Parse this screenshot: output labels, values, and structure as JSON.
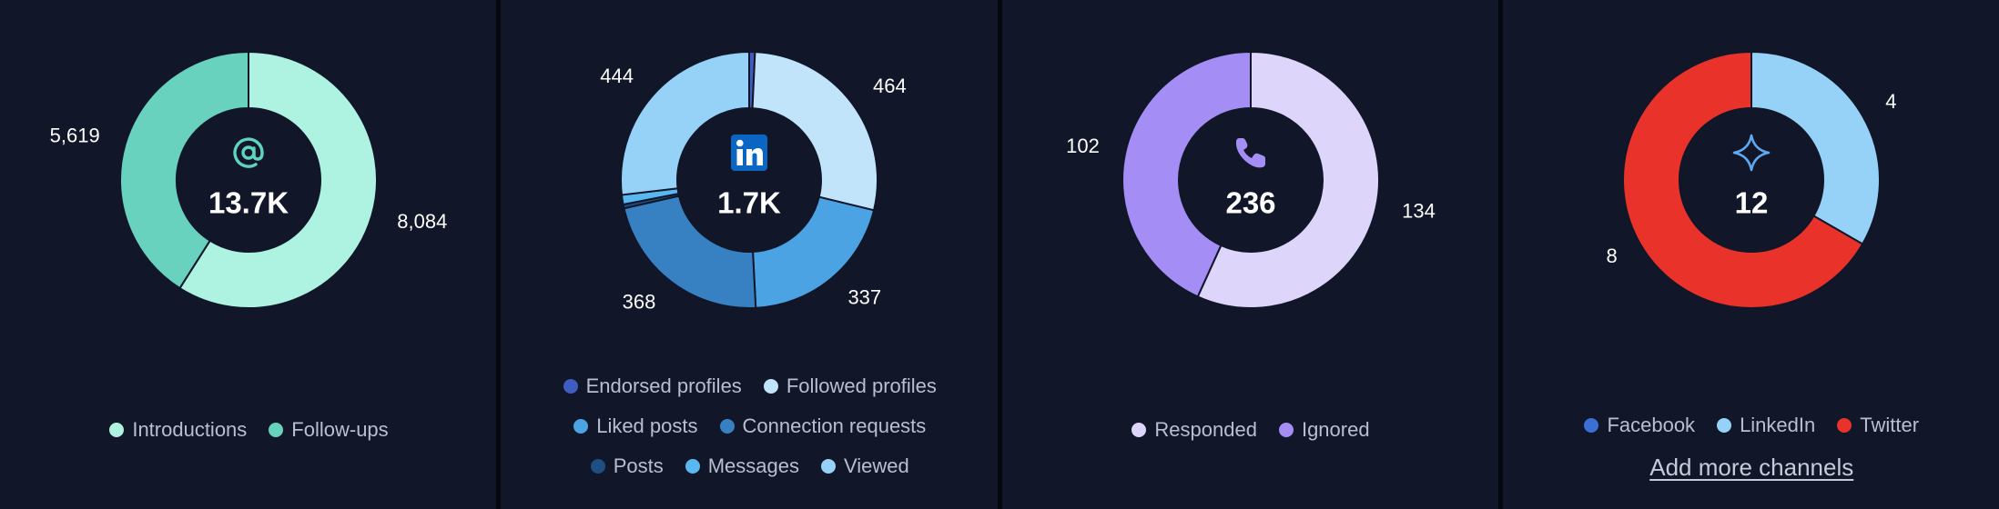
{
  "chart_data": [
    {
      "type": "pie",
      "donut": true,
      "center_icon": "at-sign-icon",
      "center_icon_color": "#5fd3be",
      "center_value": "13.7K",
      "slices": [
        {
          "name": "Introductions",
          "value": 8084,
          "label": "8,084",
          "color": "#aef2e2"
        },
        {
          "name": "Follow-ups",
          "value": 5619,
          "label": "5,619",
          "color": "#68d2bf"
        }
      ],
      "legend_rows": [
        [
          "Introductions",
          "Follow-ups"
        ]
      ]
    },
    {
      "type": "pie",
      "donut": true,
      "center_icon": "linkedin-logo-icon",
      "center_icon_color": "#0a66c2",
      "center_value": "1.7K",
      "slices": [
        {
          "name": "Endorsed profiles",
          "value": 12,
          "label": "",
          "color": "#3f5cc0"
        },
        {
          "name": "Followed profiles",
          "value": 464,
          "label": "464",
          "color": "#c1e4fa"
        },
        {
          "name": "Liked posts",
          "value": 337,
          "label": "337",
          "color": "#4ba3e3"
        },
        {
          "name": "Connection requests",
          "value": 368,
          "label": "368",
          "color": "#3781c3"
        },
        {
          "name": "Posts",
          "value": 8,
          "label": "",
          "color": "#1f4f82"
        },
        {
          "name": "Messages",
          "value": 20,
          "label": "",
          "color": "#5ab8f0"
        },
        {
          "name": "Viewed",
          "value": 444,
          "label": "444",
          "color": "#96d1f7"
        }
      ],
      "legend_rows": [
        [
          "Endorsed profiles",
          "Followed profiles"
        ],
        [
          "Liked posts",
          "Connection requests"
        ],
        [
          "Posts",
          "Messages",
          "Viewed"
        ]
      ]
    },
    {
      "type": "pie",
      "donut": true,
      "center_icon": "phone-icon",
      "center_icon_color": "#a48ef5",
      "center_value": "236",
      "slices": [
        {
          "name": "Responded",
          "value": 134,
          "label": "134",
          "color": "#ddd6fa"
        },
        {
          "name": "Ignored",
          "value": 102,
          "label": "102",
          "color": "#a48ef5"
        }
      ],
      "legend_rows": [
        [
          "Responded",
          "Ignored"
        ]
      ]
    },
    {
      "type": "pie",
      "donut": true,
      "center_icon": "sparkle-icon",
      "center_icon_color": "#5fa8f0",
      "center_value": "12",
      "slices": [
        {
          "name": "Facebook",
          "value": 0,
          "label": "",
          "color": "#3b6fd4"
        },
        {
          "name": "LinkedIn",
          "value": 4,
          "label": "4",
          "color": "#96d1f7"
        },
        {
          "name": "Twitter",
          "value": 8,
          "label": "8",
          "color": "#e8322a"
        }
      ],
      "legend_rows": [
        [
          "Facebook",
          "LinkedIn",
          "Twitter"
        ]
      ],
      "link": "Add more channels"
    }
  ]
}
